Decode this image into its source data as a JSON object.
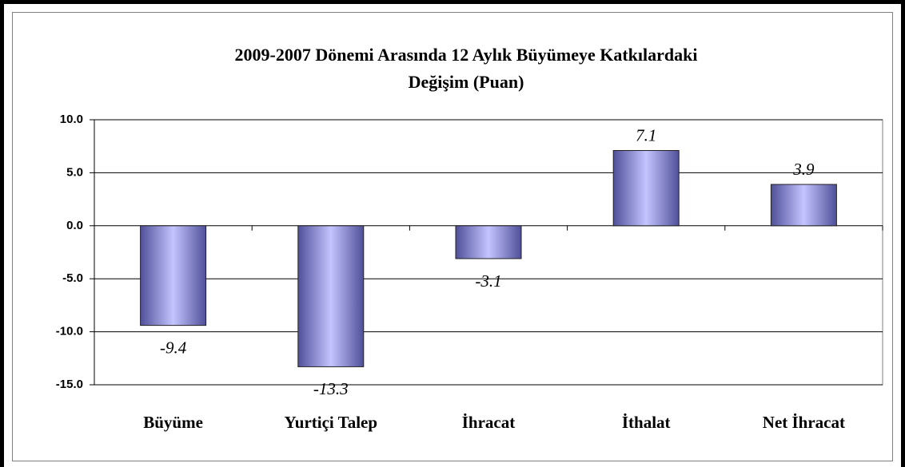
{
  "chart_data": {
    "type": "bar",
    "title": [
      "2009-2007 Dönemi Arasında 12 Aylık Büyümeye Katkılardaki",
      "Değişim (Puan)"
    ],
    "categories": [
      "Büyüme",
      "Yurtiçi Talep",
      "İhracat",
      "İthalat",
      "Net İhracat"
    ],
    "values": [
      -9.4,
      -13.3,
      -3.1,
      7.1,
      3.9
    ],
    "color": "#8080e0",
    "ylim": [
      -15,
      10
    ],
    "yticks": [
      {
        "value": -15,
        "label": "-15.0"
      },
      {
        "value": -10,
        "label": "-10.0"
      },
      {
        "value": -5,
        "label": "-5.0"
      },
      {
        "value": 0,
        "label": "0.0"
      },
      {
        "value": 5,
        "label": "5.0"
      },
      {
        "value": 10,
        "label": "10.0"
      }
    ],
    "grid": true
  }
}
